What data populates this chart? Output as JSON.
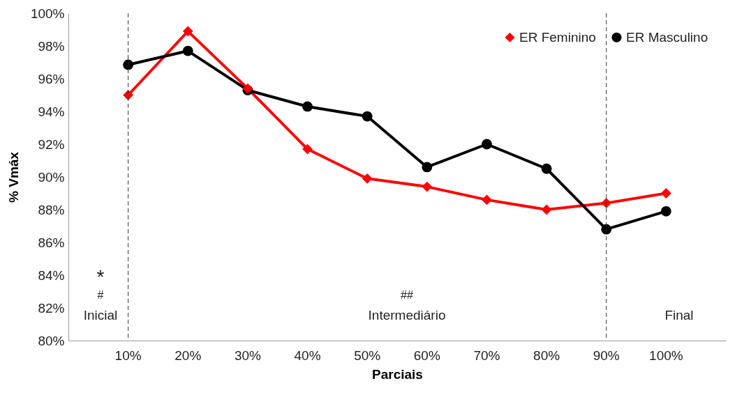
{
  "chart_data": {
    "type": "line",
    "xlabel": "Parciais",
    "ylabel": "% Vmáx",
    "categories": [
      "10%",
      "20%",
      "30%",
      "40%",
      "50%",
      "60%",
      "70%",
      "80%",
      "90%",
      "100%"
    ],
    "series": [
      {
        "name": "ER Feminino",
        "color": "#ff0000",
        "marker": "diamond",
        "values": [
          95.0,
          98.9,
          95.4,
          91.7,
          89.9,
          89.4,
          88.6,
          88.0,
          88.4,
          89.0
        ]
      },
      {
        "name": "ER Masculino",
        "color": "#000000",
        "marker": "circle",
        "values": [
          96.85,
          97.7,
          95.3,
          94.3,
          93.7,
          90.6,
          92.0,
          90.5,
          86.8,
          87.9
        ]
      }
    ],
    "ylim": [
      80,
      100
    ],
    "yticks": [
      {
        "value": 80,
        "label": "80%"
      },
      {
        "value": 82,
        "label": "82%"
      },
      {
        "value": 84,
        "label": "84%"
      },
      {
        "value": 86,
        "label": "86%"
      },
      {
        "value": 88,
        "label": "88%"
      },
      {
        "value": 90,
        "label": "90%"
      },
      {
        "value": 92,
        "label": "92%"
      },
      {
        "value": 94,
        "label": "94%"
      },
      {
        "value": 96,
        "label": "96%"
      },
      {
        "value": 98,
        "label": "98%"
      },
      {
        "value": 100,
        "label": "100%"
      }
    ],
    "ref_lines": [
      {
        "axis": "x",
        "value": "10%",
        "line_style": "dashed"
      },
      {
        "axis": "x",
        "value": "90%",
        "line_style": "dashed"
      }
    ],
    "annotations": [
      "*",
      "#",
      "Inicial",
      "##",
      "Intermediário",
      "Final"
    ],
    "legend": "top right",
    "grid": false,
    "line_style": "solid"
  }
}
